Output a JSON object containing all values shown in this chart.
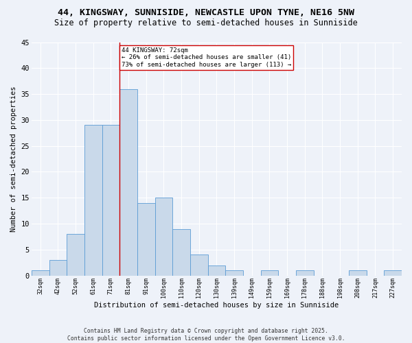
{
  "title": "44, KINGSWAY, SUNNISIDE, NEWCASTLE UPON TYNE, NE16 5NW",
  "subtitle": "Size of property relative to semi-detached houses in Sunniside",
  "xlabel": "Distribution of semi-detached houses by size in Sunniside",
  "ylabel": "Number of semi-detached properties",
  "categories": [
    "32sqm",
    "42sqm",
    "52sqm",
    "61sqm",
    "71sqm",
    "81sqm",
    "91sqm",
    "100sqm",
    "110sqm",
    "120sqm",
    "130sqm",
    "139sqm",
    "149sqm",
    "159sqm",
    "169sqm",
    "178sqm",
    "188sqm",
    "198sqm",
    "208sqm",
    "217sqm",
    "227sqm"
  ],
  "values": [
    1,
    3,
    8,
    29,
    29,
    36,
    14,
    15,
    9,
    4,
    2,
    1,
    0,
    1,
    0,
    1,
    0,
    0,
    1,
    0,
    1
  ],
  "bar_color": "#c9d9ea",
  "bar_edge_color": "#5b9bd5",
  "background_color": "#eef2f9",
  "grid_color": "#ffffff",
  "annotation_line1": "44 KINGSWAY: 72sqm",
  "annotation_line2": "← 26% of semi-detached houses are smaller (41)",
  "annotation_line3": "73% of semi-detached houses are larger (113) →",
  "annotation_box_color": "#ffffff",
  "annotation_box_edge": "#cc0000",
  "vline_color": "#cc0000",
  "ylim": [
    0,
    45
  ],
  "yticks": [
    0,
    5,
    10,
    15,
    20,
    25,
    30,
    35,
    40,
    45
  ],
  "footer": "Contains HM Land Registry data © Crown copyright and database right 2025.\nContains public sector information licensed under the Open Government Licence v3.0.",
  "title_fontsize": 9.5,
  "subtitle_fontsize": 8.5,
  "footer_fontsize": 5.8
}
